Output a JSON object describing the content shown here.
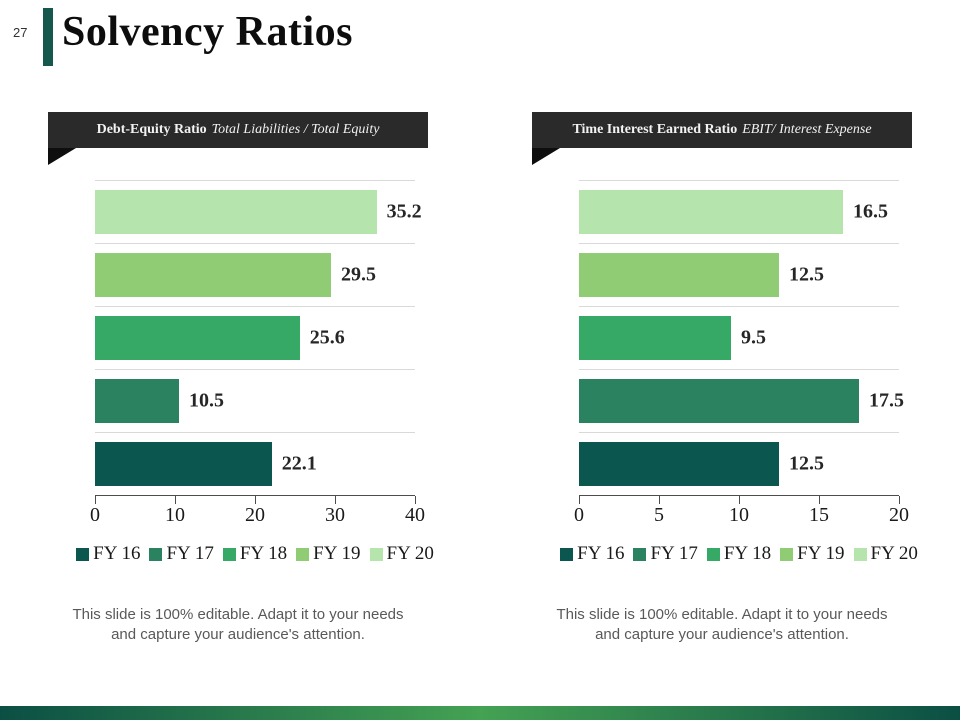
{
  "slide": {
    "number": "27",
    "title": "Solvency Ratios",
    "accent_color": "#16574e",
    "footer_note": "This slide is 100% editable. Adapt it to your needs and capture your audience's attention.",
    "bottom_bar_colors": [
      "#0b4f44",
      "#44a253",
      "#0b4f44"
    ],
    "ribbon_bg": "#2a2a2a"
  },
  "chart_data": [
    {
      "type": "bar",
      "orientation": "horizontal",
      "title_bold": "Debt-Equity Ratio",
      "title_italic": "Total Liabilities / Total Equity",
      "categories": [
        "FY 20",
        "FY 19",
        "FY 18",
        "FY 17",
        "FY 16"
      ],
      "values": [
        35.2,
        29.5,
        25.6,
        10.5,
        22.1
      ],
      "xlim": [
        0,
        40
      ],
      "xticks": [
        0,
        10,
        20,
        30,
        40
      ],
      "grid": true,
      "legend_position": "bottom",
      "legend": [
        "FY 16",
        "FY 17",
        "FY 18",
        "FY 19",
        "FY 20"
      ],
      "palette": {
        "FY 16": "#0b564e",
        "FY 17": "#2b8261",
        "FY 18": "#36a966",
        "FY 19": "#90cc74",
        "FY 20": "#b5e4ad"
      }
    },
    {
      "type": "bar",
      "orientation": "horizontal",
      "title_bold": "Time Interest Earned Ratio",
      "title_italic": "EBIT/ Interest Expense",
      "categories": [
        "FY 20",
        "FY 19",
        "FY 18",
        "FY 17",
        "FY 16"
      ],
      "values": [
        16.5,
        12.5,
        9.5,
        17.5,
        12.5
      ],
      "xlim": [
        0,
        20
      ],
      "xticks": [
        0,
        5,
        10,
        15,
        20
      ],
      "grid": true,
      "legend_position": "bottom",
      "legend": [
        "FY 16",
        "FY 17",
        "FY 18",
        "FY 19",
        "FY 20"
      ],
      "palette": {
        "FY 16": "#0b564e",
        "FY 17": "#2b8261",
        "FY 18": "#36a966",
        "FY 19": "#90cc74",
        "FY 20": "#b5e4ad"
      }
    }
  ]
}
